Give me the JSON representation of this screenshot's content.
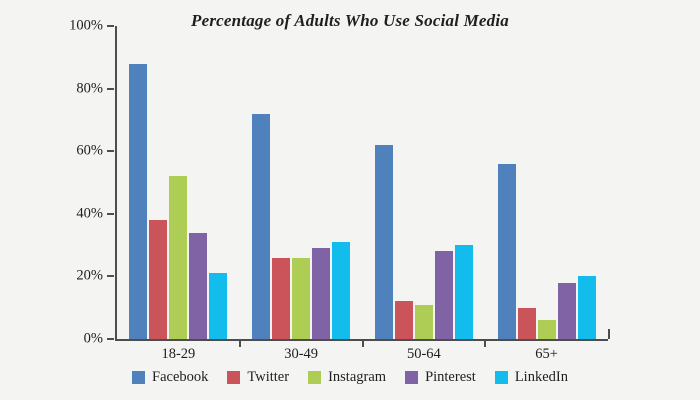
{
  "chart_data": {
    "type": "bar",
    "title": "Percentage of Adults Who Use Social Media",
    "categories": [
      "18-29",
      "30-49",
      "50-64",
      "65+"
    ],
    "series": [
      {
        "name": "Facebook",
        "color": "#4f81bd",
        "values": [
          88,
          72,
          62,
          56
        ]
      },
      {
        "name": "Twitter",
        "color": "#cb545a",
        "values": [
          38,
          26,
          12,
          10
        ]
      },
      {
        "name": "Instagram",
        "color": "#aecd55",
        "values": [
          52,
          26,
          11,
          6
        ]
      },
      {
        "name": "Pinterest",
        "color": "#7f63a5",
        "values": [
          34,
          29,
          28,
          18
        ]
      },
      {
        "name": "LinkedIn",
        "color": "#12bdee",
        "values": [
          21,
          31,
          30,
          20
        ]
      }
    ],
    "y_ticks": [
      "0%",
      "20%",
      "40%",
      "60%",
      "80%",
      "100%"
    ],
    "ylim": [
      0,
      100
    ],
    "grid": false,
    "legend_position": "bottom",
    "xlabel": "",
    "ylabel": ""
  },
  "colors": {
    "background": "#f4f4f2",
    "axis": "#4d4d4d",
    "text": "#1f1f1f"
  }
}
